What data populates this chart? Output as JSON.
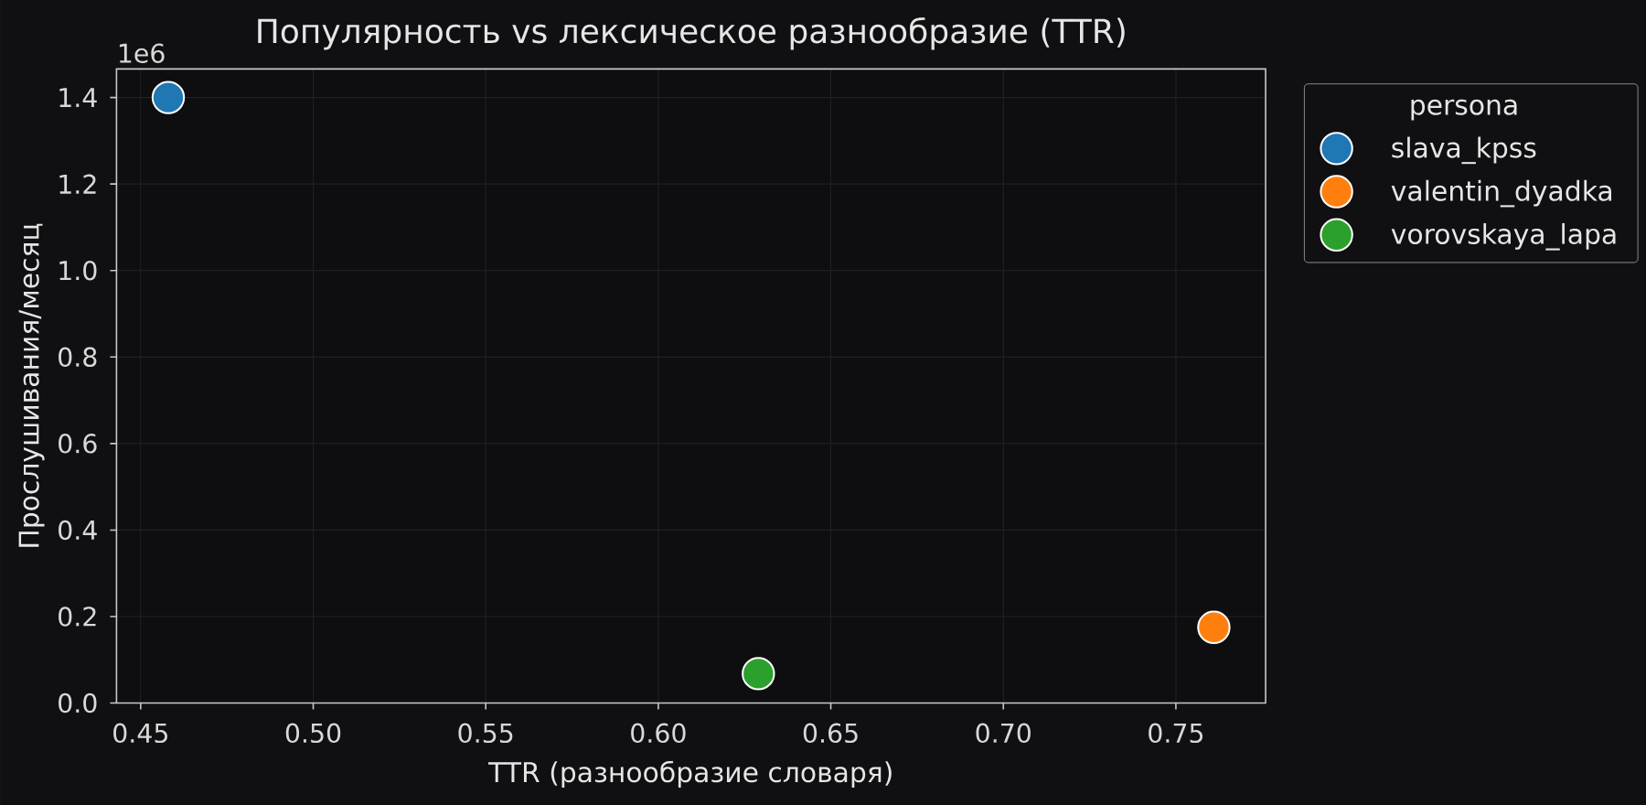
{
  "chart_data": {
    "type": "scatter",
    "title": "Популярность vs лексическое разнообразие (TTR)",
    "xlabel": "TTR (разнообразие словаря)",
    "ylabel": "Прослушивания/месяц",
    "legend_title": "persona",
    "annotations": [
      "1e6"
    ],
    "series": [
      {
        "name": "slava_kpss",
        "color": "#1f77b4",
        "x": [
          0.458
        ],
        "values": [
          1.4
        ]
      },
      {
        "name": "valentin_dyadka",
        "color": "#ff7f0e",
        "x": [
          0.761
        ],
        "values": [
          0.175
        ]
      },
      {
        "name": "vorovskaya_lapa",
        "color": "#2ca02c",
        "x": [
          0.629
        ],
        "values": [
          0.068
        ]
      }
    ],
    "xlim": [
      0.443,
      0.776
    ],
    "ylim": [
      0,
      1.466
    ],
    "xticks": [
      0.45,
      {
        "value": 0.5,
        "label": "0.50"
      },
      0.55,
      {
        "value": 0.6,
        "label": "0.60"
      },
      0.65,
      {
        "value": 0.7,
        "label": "0.70"
      },
      0.75
    ],
    "yticks": [
      {
        "value": 0,
        "label": "0.0"
      },
      0.2,
      0.4,
      0.6,
      0.8,
      {
        "value": 1,
        "label": "1.0"
      },
      1.2,
      1.4
    ],
    "grid": true,
    "legend": "top right",
    "marker": "circle"
  }
}
